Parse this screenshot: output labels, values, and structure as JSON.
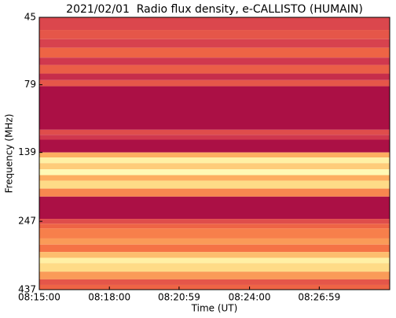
{
  "chart_data": {
    "type": "spectrogram",
    "title": "2021/02/01  Radio flux density, e-CALLISTO (HUMAIN)",
    "xlabel": "Time (UT)",
    "ylabel": "Frequency (MHz)",
    "xlim": [
      29700,
      30600
    ],
    "xticks": [
      {
        "value": 29700,
        "label": "08:15:00"
      },
      {
        "value": 29880,
        "label": "08:18:00"
      },
      {
        "value": 30059,
        "label": "08:20:59"
      },
      {
        "value": 30240,
        "label": "08:24:00"
      },
      {
        "value": 30419,
        "label": "08:26:59"
      }
    ],
    "ylim": [
      45,
      437
    ],
    "yticks": [
      45,
      79,
      139,
      247,
      437
    ],
    "ylog": true,
    "yinverted": true,
    "colormap": [
      "#9e0142",
      "#d53e4f",
      "#f46d43",
      "#fdae61",
      "#fee08b",
      "#ffffbf",
      "#e6f598"
    ],
    "freq_edges": [
      45,
      50,
      54,
      58,
      63,
      67,
      72,
      76,
      80,
      115,
      120,
      125,
      139,
      145,
      152,
      160,
      168,
      176,
      188,
      201,
      242,
      252,
      262,
      285,
      300,
      319,
      335,
      350,
      376,
      401,
      420,
      437
    ],
    "levels": [
      0.2,
      0.25,
      0.18,
      0.3,
      0.15,
      0.28,
      0.12,
      0.25,
      0.04,
      0.22,
      0.15,
      0.04,
      0.5,
      0.75,
      0.6,
      0.8,
      0.5,
      0.65,
      0.4,
      0.04,
      0.22,
      0.3,
      0.38,
      0.45,
      0.35,
      0.55,
      0.75,
      0.65,
      0.45,
      0.25,
      0.3
    ]
  }
}
